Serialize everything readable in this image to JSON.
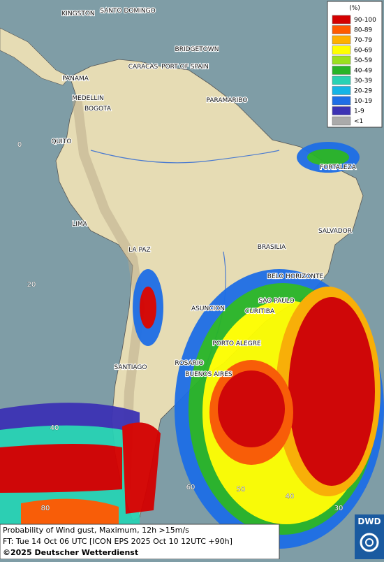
{
  "map": {
    "cities": [
      "KINGSTON",
      "SANTO DOMINGO",
      "BRIDGETOWN",
      "PANAMA",
      "CARACAS",
      "PORT OF SPAIN",
      "MEDELLIN",
      "BOGOTA",
      "PARAMARIBO",
      "QUITO",
      "FORTALEZA",
      "LIMA",
      "SALVADOR",
      "LA PAZ",
      "BRASILIA",
      "BELO HORIZONTE",
      "SAO PAULO",
      "CURITIBA",
      "ASUNCION",
      "PORTO ALEGRE",
      "ROSARIO",
      "BUENOS AIRES",
      "SANTIAGO"
    ],
    "grid_labels": [
      "0",
      "20",
      "40",
      "80",
      "60",
      "50",
      "40",
      "30"
    ]
  },
  "legend": {
    "title": "(%)",
    "items": [
      {
        "label": "90-100",
        "color": "#d40000"
      },
      {
        "label": "80-89",
        "color": "#ff5a00"
      },
      {
        "label": "70-79",
        "color": "#ffb000"
      },
      {
        "label": "60-69",
        "color": "#ffff00"
      },
      {
        "label": "50-59",
        "color": "#9be01e"
      },
      {
        "label": "40-49",
        "color": "#28b428"
      },
      {
        "label": "30-39",
        "color": "#28d2b4"
      },
      {
        "label": "20-29",
        "color": "#14b4e6"
      },
      {
        "label": "10-19",
        "color": "#1e6ee6"
      },
      {
        "label": "1-9",
        "color": "#3c32b4"
      },
      {
        "label": "<1",
        "color": "#aaaaaa"
      }
    ]
  },
  "caption": {
    "line1": "Probability of Wind gust, Maximum, 12h >15m/s",
    "line2": "FT: Tue 14 Oct 06 UTC [ICON EPS 2025 Oct 10 12UTC +90h]",
    "line3": "©2025 Deutscher Wetterdienst"
  },
  "logo": "DWD"
}
